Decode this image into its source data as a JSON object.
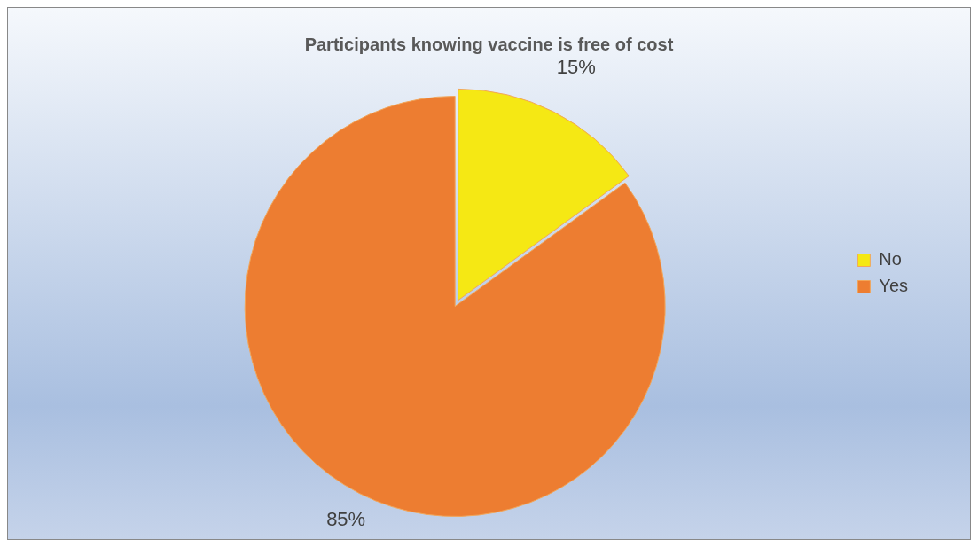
{
  "chart_data": {
    "type": "pie",
    "title": "Participants knowing vaccine is free of cost",
    "categories": [
      "No",
      "Yes"
    ],
    "values": [
      15,
      85
    ],
    "colors": [
      "#f5e814",
      "#ed7d31"
    ],
    "value_labels": [
      "15%",
      "85%"
    ],
    "legend": "right"
  }
}
